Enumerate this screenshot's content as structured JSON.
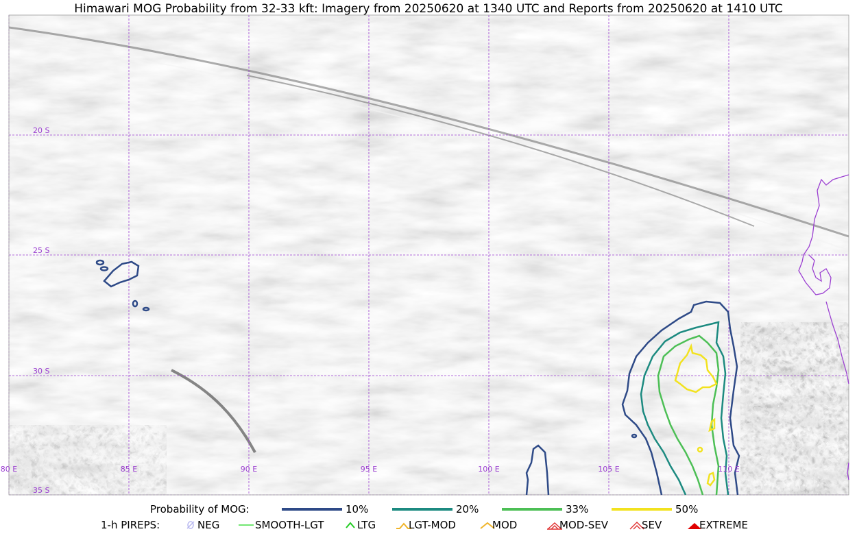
{
  "title": "Himawari MOG Probability from 32-33 kft: Imagery from 20250620 at 1340 UTC and Reports from 20250620 at 1410 UTC",
  "map": {
    "lat_labels": [
      "20 S",
      "25 S",
      "30 S",
      "35 S"
    ],
    "lon_labels": [
      "80 E",
      "85 E",
      "90 E",
      "95 E",
      "100 E",
      "105 E",
      "110 E"
    ],
    "colors": {
      "grid": "#9b3fd1",
      "coast": "#9b3fd1",
      "p10": "#2e4a87",
      "p20": "#1c8a80",
      "p33": "#4cbf55",
      "p50": "#f2e21f"
    }
  },
  "legend": {
    "probability_label": "Probability of MOG:",
    "probability_items": [
      {
        "label": "10%",
        "color": "#2e4a87"
      },
      {
        "label": "20%",
        "color": "#1c8a80"
      },
      {
        "label": "33%",
        "color": "#4cbf55"
      },
      {
        "label": "50%",
        "color": "#f2e21f"
      }
    ],
    "pireps_label": "1-h PIREPS:",
    "pirep_items": [
      {
        "label": "NEG",
        "icon": "neg-icon",
        "color": "#b8b8f0"
      },
      {
        "label": "SMOOTH-LGT",
        "icon": "smooth-lgt-line-icon",
        "color": "#44dd44"
      },
      {
        "label": "LTG",
        "icon": "ltg-chevron-icon",
        "color": "#22cc22"
      },
      {
        "label": "LGT-MOD",
        "icon": "lgt-mod-chevron-icon",
        "color": "#f0b429"
      },
      {
        "label": "MOD",
        "icon": "mod-chevron-icon",
        "color": "#f0b429"
      },
      {
        "label": "MOD-SEV",
        "icon": "mod-sev-chevron-icon",
        "color": "#e03030"
      },
      {
        "label": "SEV",
        "icon": "sev-chevron-icon",
        "color": "#e03030"
      },
      {
        "label": "EXTREME",
        "icon": "extreme-chevron-icon",
        "color": "#e00000"
      }
    ]
  }
}
